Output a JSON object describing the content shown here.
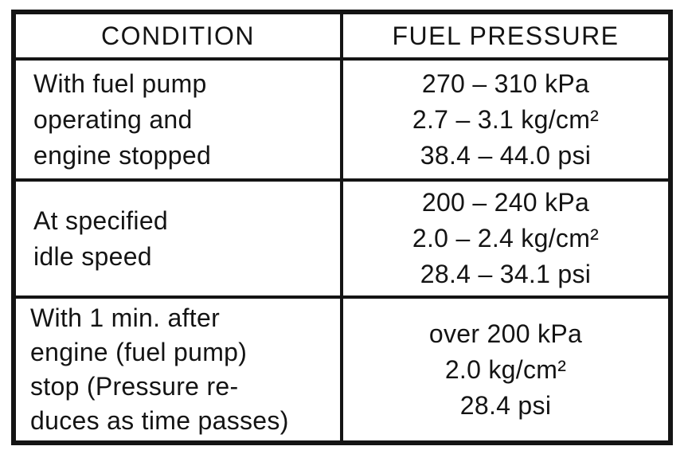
{
  "colors": {
    "ink": "#141414",
    "paper": "#ffffff"
  },
  "table": {
    "headers": {
      "condition": "CONDITION",
      "fuel_pressure": "FUEL PRESSURE"
    },
    "rows": [
      {
        "condition": [
          "With fuel pump",
          "operating and",
          "engine stopped"
        ],
        "pressure": [
          "270 – 310 kPa",
          "2.7 – 3.1 kg/cm²",
          "38.4 – 44.0 psi"
        ]
      },
      {
        "condition": [
          "At specified",
          "idle speed"
        ],
        "pressure": [
          "200 – 240 kPa",
          "2.0 – 2.4 kg/cm²",
          "28.4 – 34.1 psi"
        ]
      },
      {
        "condition": [
          "With 1 min. after",
          "engine (fuel pump)",
          "stop (Pressure re-",
          "duces as time passes)"
        ],
        "pressure": [
          "over 200 kPa",
          "2.0 kg/cm²",
          "28.4 psi"
        ]
      }
    ]
  }
}
